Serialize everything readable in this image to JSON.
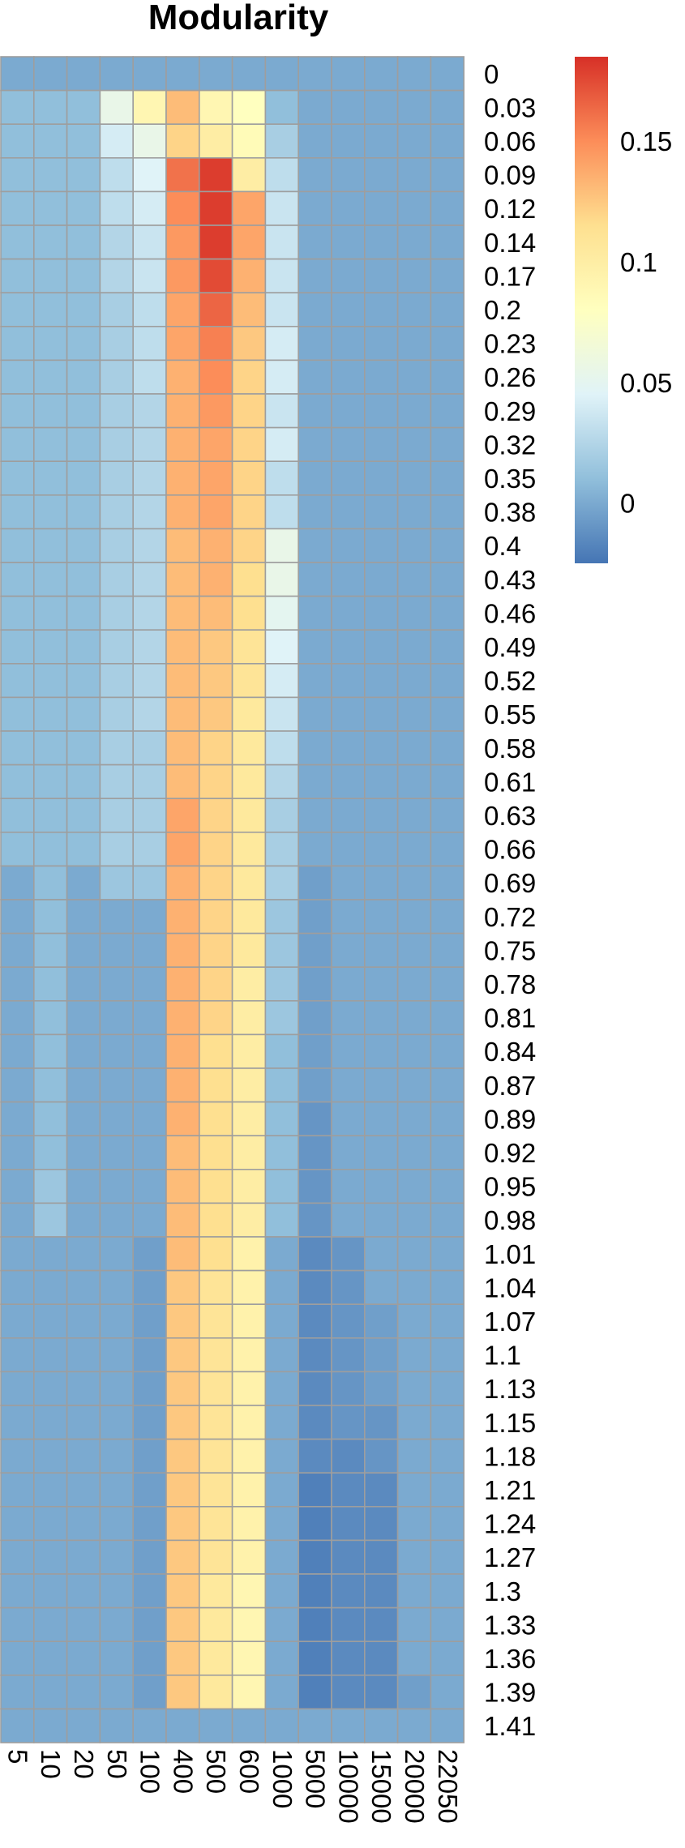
{
  "chart_data": {
    "type": "heatmap",
    "title": "Modularity",
    "x_categories": [
      "5",
      "10",
      "20",
      "50",
      "100",
      "400",
      "500",
      "600",
      "1000",
      "5000",
      "10000",
      "15000",
      "20000",
      "22050"
    ],
    "y_categories": [
      "0",
      "0.03",
      "0.06",
      "0.09",
      "0.12",
      "0.14",
      "0.17",
      "0.2",
      "0.23",
      "0.26",
      "0.29",
      "0.32",
      "0.35",
      "0.38",
      "0.4",
      "0.43",
      "0.46",
      "0.49",
      "0.52",
      "0.55",
      "0.58",
      "0.61",
      "0.63",
      "0.66",
      "0.69",
      "0.72",
      "0.75",
      "0.78",
      "0.81",
      "0.84",
      "0.87",
      "0.89",
      "0.92",
      "0.95",
      "0.98",
      "1.01",
      "1.04",
      "1.07",
      "1.1",
      "1.13",
      "1.15",
      "1.18",
      "1.21",
      "1.24",
      "1.27",
      "1.3",
      "1.33",
      "1.36",
      "1.39",
      "1.41"
    ],
    "values": [
      [
        0,
        0,
        0,
        0,
        0,
        0,
        0,
        0,
        0,
        0,
        0,
        0,
        0,
        0
      ],
      [
        0.01,
        0.01,
        0.01,
        0.055,
        0.09,
        0.13,
        0.09,
        0.08,
        0.01,
        0,
        0,
        0,
        0,
        0
      ],
      [
        0.01,
        0.01,
        0.01,
        0.04,
        0.055,
        0.12,
        0.1,
        0.085,
        0.02,
        0,
        0,
        0,
        0,
        0
      ],
      [
        0.01,
        0.01,
        0.01,
        0.03,
        0.045,
        0.16,
        0.18,
        0.1,
        0.03,
        0,
        0,
        0,
        0,
        0
      ],
      [
        0.01,
        0.01,
        0.01,
        0.03,
        0.04,
        0.15,
        0.18,
        0.14,
        0.035,
        0,
        0,
        0,
        0,
        0
      ],
      [
        0.01,
        0.01,
        0.01,
        0.025,
        0.035,
        0.145,
        0.18,
        0.14,
        0.035,
        0,
        0,
        0,
        0,
        0
      ],
      [
        0.01,
        0.01,
        0.01,
        0.025,
        0.035,
        0.145,
        0.175,
        0.135,
        0.035,
        0,
        0,
        0,
        0,
        0
      ],
      [
        0.01,
        0.01,
        0.01,
        0.02,
        0.03,
        0.14,
        0.165,
        0.13,
        0.035,
        0,
        0,
        0,
        0,
        0
      ],
      [
        0.01,
        0.01,
        0.01,
        0.02,
        0.03,
        0.14,
        0.155,
        0.125,
        0.04,
        0,
        0,
        0,
        0,
        0
      ],
      [
        0.01,
        0.01,
        0.01,
        0.02,
        0.03,
        0.135,
        0.15,
        0.12,
        0.04,
        0,
        0,
        0,
        0,
        0
      ],
      [
        0.01,
        0.01,
        0.01,
        0.02,
        0.025,
        0.135,
        0.145,
        0.12,
        0.035,
        0,
        0,
        0,
        0,
        0
      ],
      [
        0.01,
        0.01,
        0.01,
        0.02,
        0.025,
        0.135,
        0.14,
        0.12,
        0.04,
        0,
        0,
        0,
        0,
        0
      ],
      [
        0.01,
        0.01,
        0.01,
        0.02,
        0.025,
        0.135,
        0.14,
        0.12,
        0.03,
        0,
        0,
        0,
        0,
        0
      ],
      [
        0.01,
        0.01,
        0.01,
        0.02,
        0.025,
        0.135,
        0.14,
        0.12,
        0.03,
        0,
        0,
        0,
        0,
        0
      ],
      [
        0.01,
        0.01,
        0.01,
        0.02,
        0.025,
        0.13,
        0.135,
        0.12,
        0.055,
        0,
        0,
        0,
        0,
        0
      ],
      [
        0.01,
        0.01,
        0.01,
        0.02,
        0.025,
        0.13,
        0.135,
        0.115,
        0.055,
        0,
        0,
        0,
        0,
        0
      ],
      [
        0.01,
        0.01,
        0.01,
        0.02,
        0.025,
        0.13,
        0.13,
        0.115,
        0.05,
        0,
        0,
        0,
        0,
        0
      ],
      [
        0.01,
        0.01,
        0.01,
        0.02,
        0.025,
        0.13,
        0.125,
        0.11,
        0.045,
        0,
        0,
        0,
        0,
        0
      ],
      [
        0.01,
        0.01,
        0.01,
        0.02,
        0.025,
        0.13,
        0.125,
        0.11,
        0.04,
        0,
        0,
        0,
        0,
        0
      ],
      [
        0.01,
        0.01,
        0.01,
        0.02,
        0.025,
        0.13,
        0.125,
        0.105,
        0.035,
        0,
        0,
        0,
        0,
        0
      ],
      [
        0.01,
        0.01,
        0.01,
        0.02,
        0.02,
        0.13,
        0.12,
        0.105,
        0.03,
        0,
        0,
        0,
        0,
        0
      ],
      [
        0.01,
        0.01,
        0.01,
        0.02,
        0.02,
        0.13,
        0.12,
        0.105,
        0.025,
        0,
        0,
        0,
        0,
        0
      ],
      [
        0.01,
        0.01,
        0.01,
        0.02,
        0.02,
        0.14,
        0.12,
        0.105,
        0.02,
        0,
        0,
        0,
        0,
        0
      ],
      [
        0.01,
        0.01,
        0.01,
        0.02,
        0.02,
        0.14,
        0.12,
        0.105,
        0.02,
        0,
        0,
        0,
        0,
        0
      ],
      [
        0,
        0.01,
        0,
        0.015,
        0.015,
        0.135,
        0.12,
        0.105,
        0.02,
        -0.005,
        0,
        0,
        0,
        0
      ],
      [
        0,
        0.01,
        0,
        0,
        0,
        0.135,
        0.12,
        0.105,
        0.015,
        -0.005,
        0,
        0,
        0,
        0
      ],
      [
        0,
        0.01,
        0,
        0,
        0,
        0.135,
        0.12,
        0.105,
        0.015,
        -0.005,
        0,
        0,
        0,
        0
      ],
      [
        0,
        0.01,
        0,
        0,
        0,
        0.135,
        0.12,
        0.1,
        0.015,
        -0.005,
        0,
        0,
        0,
        0
      ],
      [
        0,
        0.01,
        0,
        0,
        0,
        0.135,
        0.12,
        0.1,
        0.015,
        -0.005,
        0,
        0,
        0,
        0
      ],
      [
        0,
        0.01,
        0,
        0,
        0,
        0.135,
        0.115,
        0.1,
        0.01,
        -0.005,
        0,
        0,
        0,
        0
      ],
      [
        0,
        0.01,
        0,
        0,
        0,
        0.135,
        0.115,
        0.1,
        0.01,
        -0.005,
        0,
        0,
        0,
        0
      ],
      [
        0,
        0.01,
        0,
        0,
        0,
        0.135,
        0.115,
        0.1,
        0.01,
        -0.01,
        0,
        0,
        0,
        0
      ],
      [
        0,
        0.01,
        0,
        0,
        0,
        0.13,
        0.115,
        0.1,
        0.01,
        -0.01,
        0,
        0,
        0,
        0
      ],
      [
        0,
        0.015,
        0,
        0,
        0,
        0.13,
        0.115,
        0.1,
        0.01,
        -0.01,
        0,
        0,
        0,
        0
      ],
      [
        0,
        0.015,
        0,
        0,
        0,
        0.13,
        0.115,
        0.1,
        0.01,
        -0.01,
        0,
        0,
        0,
        0
      ],
      [
        0,
        0,
        0,
        0,
        -0.005,
        0.13,
        0.115,
        0.095,
        0,
        -0.015,
        -0.01,
        0,
        0,
        0
      ],
      [
        0,
        0,
        0,
        0,
        -0.005,
        0.125,
        0.11,
        0.095,
        0,
        -0.015,
        -0.01,
        0,
        0,
        0
      ],
      [
        0,
        0,
        0,
        0,
        -0.005,
        0.125,
        0.11,
        0.095,
        0,
        -0.015,
        -0.01,
        -0.005,
        0,
        0
      ],
      [
        0,
        0,
        0,
        0,
        -0.005,
        0.125,
        0.11,
        0.095,
        0,
        -0.015,
        -0.01,
        -0.005,
        0,
        0
      ],
      [
        0,
        0,
        0,
        0,
        -0.005,
        0.125,
        0.11,
        0.095,
        0,
        -0.015,
        -0.01,
        -0.005,
        0,
        0
      ],
      [
        0,
        0,
        0,
        0,
        -0.005,
        0.125,
        0.11,
        0.095,
        0,
        -0.015,
        -0.01,
        -0.01,
        0,
        0
      ],
      [
        0,
        0,
        0,
        0,
        -0.005,
        0.125,
        0.11,
        0.095,
        0,
        -0.015,
        -0.015,
        -0.01,
        0,
        0
      ],
      [
        0,
        0,
        0,
        0,
        -0.005,
        0.125,
        0.11,
        0.095,
        0,
        -0.02,
        -0.015,
        -0.015,
        0,
        0
      ],
      [
        0,
        0,
        0,
        0,
        -0.005,
        0.125,
        0.11,
        0.095,
        0,
        -0.02,
        -0.015,
        -0.015,
        0,
        0
      ],
      [
        0,
        0,
        0,
        0,
        -0.005,
        0.125,
        0.11,
        0.095,
        0,
        -0.02,
        -0.015,
        -0.015,
        0,
        0
      ],
      [
        0,
        0,
        0,
        0,
        -0.005,
        0.125,
        0.105,
        0.09,
        0,
        -0.02,
        -0.015,
        -0.015,
        0,
        0
      ],
      [
        0,
        0,
        0,
        0,
        -0.005,
        0.125,
        0.105,
        0.09,
        0,
        -0.02,
        -0.015,
        -0.015,
        0,
        0
      ],
      [
        0,
        0,
        0,
        0,
        -0.005,
        0.125,
        0.105,
        0.09,
        0,
        -0.02,
        -0.015,
        -0.015,
        0,
        0
      ],
      [
        0,
        0,
        0,
        0,
        -0.005,
        0.125,
        0.105,
        0.09,
        0,
        -0.02,
        -0.015,
        -0.015,
        -0.005,
        0
      ],
      [
        0,
        0,
        0,
        0,
        0,
        0,
        0,
        0,
        0,
        0,
        0,
        0,
        0,
        0
      ]
    ],
    "colorbar": {
      "range": [
        -0.025,
        0.185
      ],
      "ticks": [
        0,
        0.05,
        0.1,
        0.15
      ],
      "tick_labels": [
        "0",
        "0.05",
        "0.1",
        "0.15"
      ],
      "colors": [
        "#4575b4",
        "#91bfdb",
        "#e0f3f8",
        "#ffffbf",
        "#fee090",
        "#fc8d59",
        "#d73027"
      ]
    },
    "grid": true,
    "legend_placement": "right"
  }
}
